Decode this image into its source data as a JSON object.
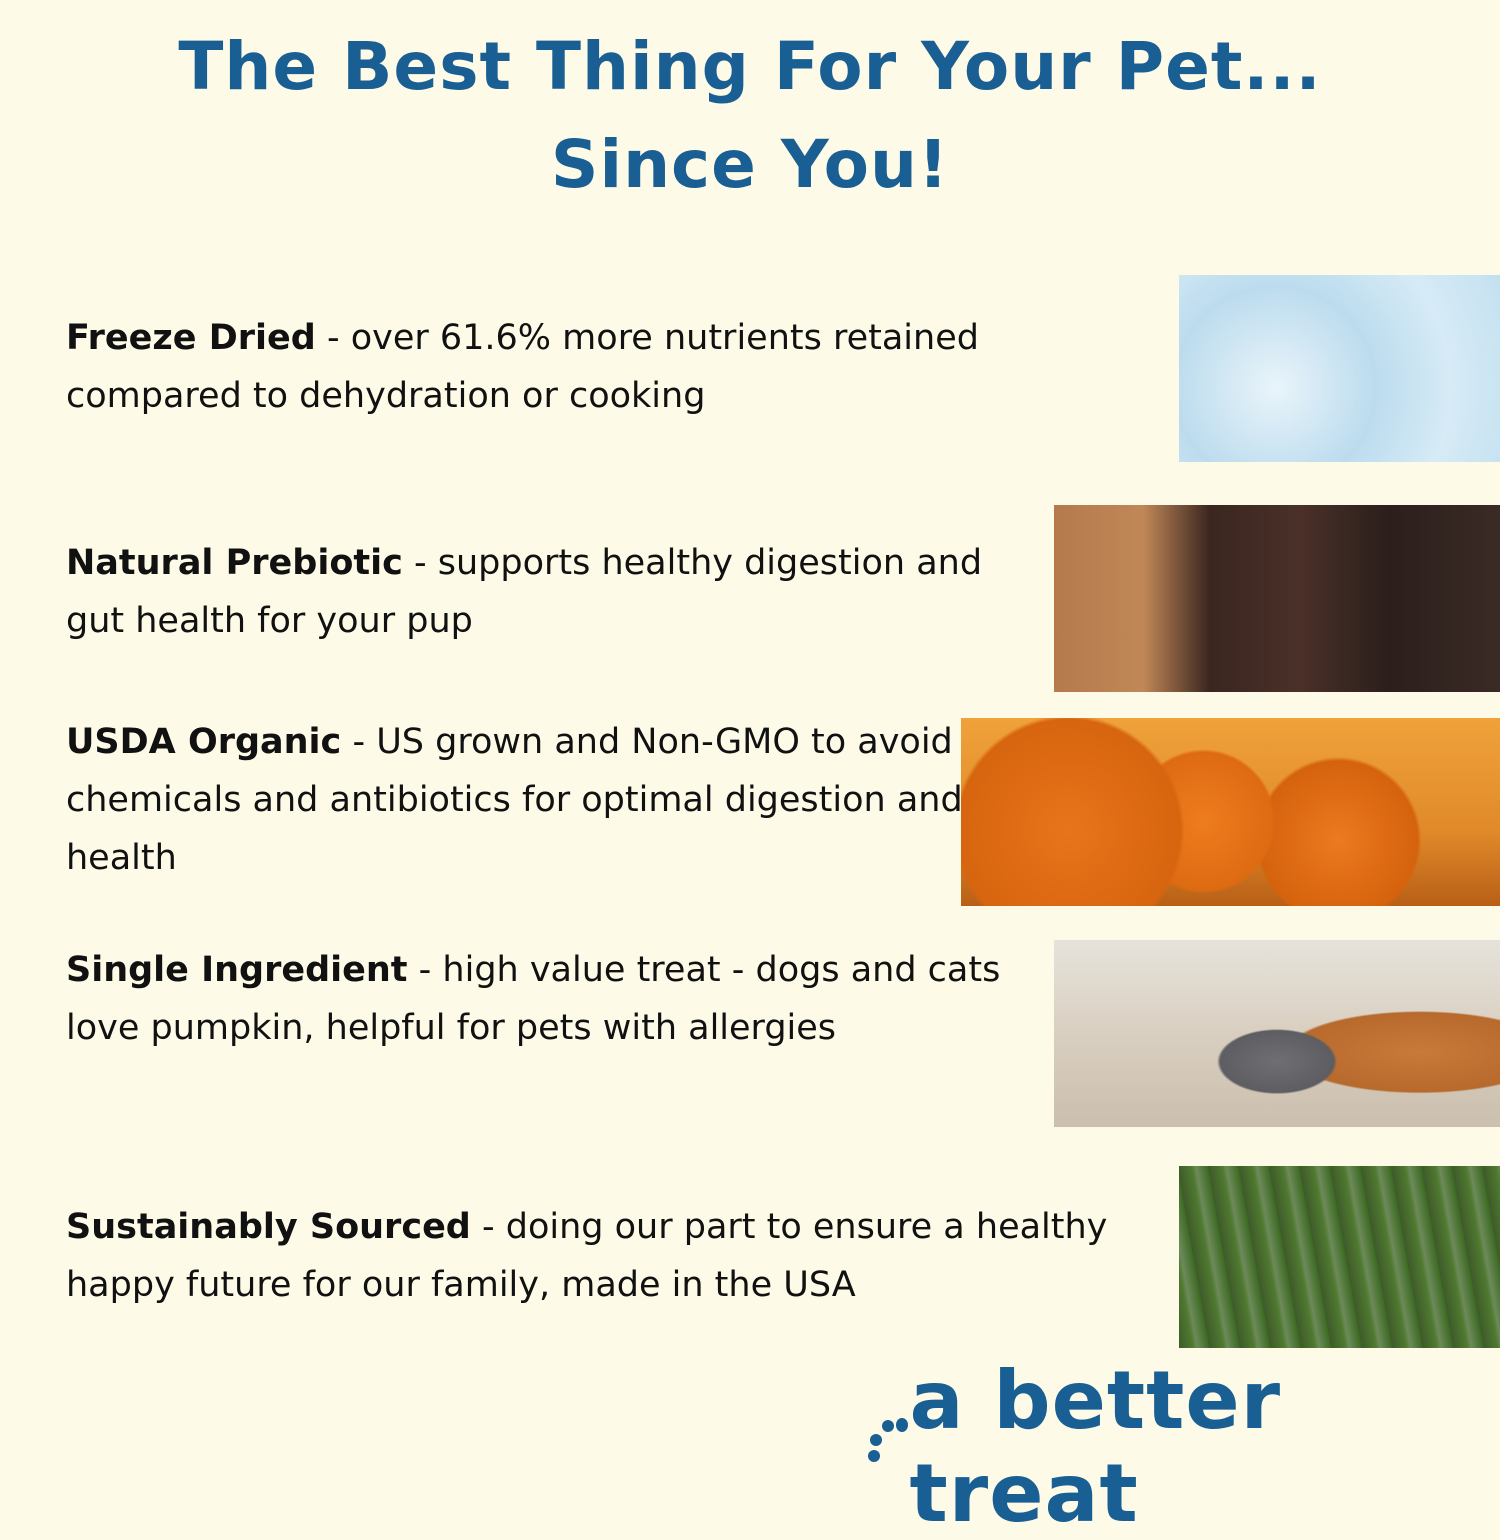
{
  "header": {
    "line1": "The Best Thing For Your Pet...",
    "line2": "Since You!"
  },
  "features": [
    {
      "title": "Freeze Dried",
      "text": " - over 61.6% more nutrients retained compared to dehydration or cooking",
      "image": "ice-crystals-photo"
    },
    {
      "title": "Natural Prebiotic",
      "text": " - supports healthy digestion and gut health for your pup",
      "image": "brown-dog-photo"
    },
    {
      "title": "USDA Organic",
      "text": " - US grown and Non-GMO to avoid chemicals and antibiotics for optimal digestion and health",
      "image": "pumpkins-photo"
    },
    {
      "title": "Single Ingredient",
      "text": " - high value treat - dogs and cats love pumpkin, helpful for pets with allergies",
      "image": "cat-and-dog-photo"
    },
    {
      "title": "Sustainably Sourced",
      "text": " - doing our part to ensure a healthy happy future for our family, made in the USA",
      "image": "forest-photo"
    }
  ],
  "logo": {
    "text": "a better treat"
  },
  "colors": {
    "background": "#fdfbe8",
    "brand": "#195f93",
    "text": "#111111"
  }
}
